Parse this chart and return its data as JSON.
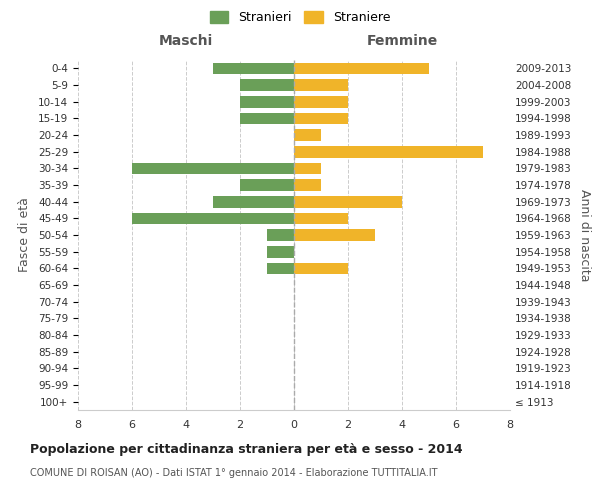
{
  "age_groups": [
    "100+",
    "95-99",
    "90-94",
    "85-89",
    "80-84",
    "75-79",
    "70-74",
    "65-69",
    "60-64",
    "55-59",
    "50-54",
    "45-49",
    "40-44",
    "35-39",
    "30-34",
    "25-29",
    "20-24",
    "15-19",
    "10-14",
    "5-9",
    "0-4"
  ],
  "birth_years": [
    "≤ 1913",
    "1914-1918",
    "1919-1923",
    "1924-1928",
    "1929-1933",
    "1934-1938",
    "1939-1943",
    "1944-1948",
    "1949-1953",
    "1954-1958",
    "1959-1963",
    "1964-1968",
    "1969-1973",
    "1974-1978",
    "1979-1983",
    "1984-1988",
    "1989-1993",
    "1994-1998",
    "1999-2003",
    "2004-2008",
    "2009-2013"
  ],
  "maschi": [
    0,
    0,
    0,
    0,
    0,
    0,
    0,
    0,
    1,
    1,
    1,
    6,
    3,
    2,
    6,
    0,
    0,
    2,
    2,
    2,
    3
  ],
  "femmine": [
    0,
    0,
    0,
    0,
    0,
    0,
    0,
    0,
    2,
    0,
    3,
    2,
    4,
    1,
    1,
    7,
    1,
    2,
    2,
    2,
    5
  ],
  "color_maschi": "#6a9f58",
  "color_femmine": "#f0b429",
  "background_color": "#ffffff",
  "grid_color": "#cccccc",
  "title": "Popolazione per cittadinanza straniera per età e sesso - 2014",
  "subtitle": "COMUNE DI ROISAN (AO) - Dati ISTAT 1° gennaio 2014 - Elaborazione TUTTITALIA.IT",
  "xlabel_left": "Maschi",
  "xlabel_right": "Femmine",
  "ylabel_left": "Fasce di età",
  "ylabel_right": "Anni di nascita",
  "legend_stranieri": "Stranieri",
  "legend_straniere": "Straniere",
  "xlim": 8,
  "figsize": [
    6.0,
    5.0
  ],
  "dpi": 100
}
